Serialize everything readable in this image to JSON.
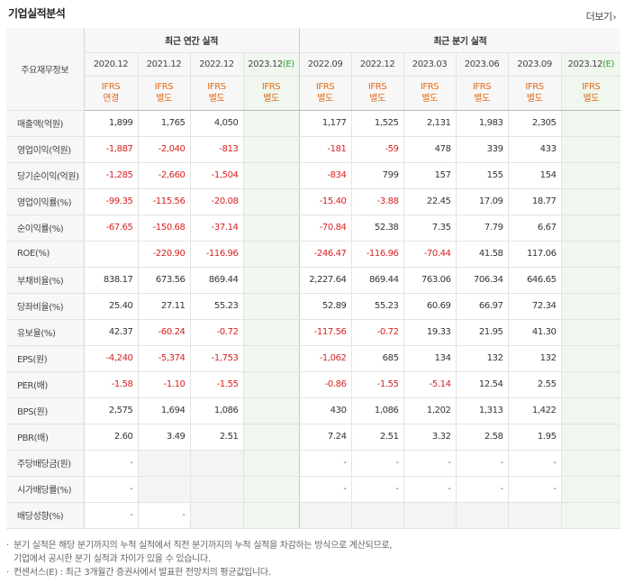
{
  "section_title": "기업실적분석",
  "more_link": "더보기",
  "header": {
    "corner": "주요재무정보",
    "annual_group": "최근 연간 실적",
    "quarterly_group": "최근 분기 실적",
    "annual_periods": [
      "2020.12",
      "2021.12",
      "2022.12",
      "2023.12(E)"
    ],
    "quarterly_periods": [
      "2022.09",
      "2022.12",
      "2023.03",
      "2023.06",
      "2023.09",
      "2023.12(E)"
    ],
    "annual_ifrs": [
      [
        "IFRS",
        "연결"
      ],
      [
        "IFRS",
        "별도"
      ],
      [
        "IFRS",
        "별도"
      ],
      [
        "IFRS",
        "별도"
      ]
    ],
    "quarterly_ifrs": [
      [
        "IFRS",
        "별도"
      ],
      [
        "IFRS",
        "별도"
      ],
      [
        "IFRS",
        "별도"
      ],
      [
        "IFRS",
        "별도"
      ],
      [
        "IFRS",
        "별도"
      ],
      [
        "IFRS",
        "별도"
      ]
    ]
  },
  "rows": [
    {
      "label": "매출액(억원)",
      "annual": [
        "1,899",
        "1,765",
        "4,050",
        ""
      ],
      "quarterly": [
        "1,177",
        "1,525",
        "2,131",
        "1,983",
        "2,305",
        ""
      ]
    },
    {
      "label": "영업이익(억원)",
      "annual": [
        "-1,887",
        "-2,040",
        "-813",
        ""
      ],
      "quarterly": [
        "-181",
        "-59",
        "478",
        "339",
        "433",
        ""
      ]
    },
    {
      "label": "당기순이익(억원)",
      "annual": [
        "-1,285",
        "-2,660",
        "-1,504",
        ""
      ],
      "quarterly": [
        "-834",
        "799",
        "157",
        "155",
        "154",
        ""
      ]
    },
    {
      "label": "영업이익률(%)",
      "annual": [
        "-99.35",
        "-115.56",
        "-20.08",
        ""
      ],
      "quarterly": [
        "-15.40",
        "-3.88",
        "22.45",
        "17.09",
        "18.77",
        ""
      ]
    },
    {
      "label": "순이익률(%)",
      "annual": [
        "-67.65",
        "-150.68",
        "-37.14",
        ""
      ],
      "quarterly": [
        "-70.84",
        "52.38",
        "7.35",
        "7.79",
        "6.67",
        ""
      ]
    },
    {
      "label": "ROE(%)",
      "annual": [
        "",
        "-220.90",
        "-116.96",
        ""
      ],
      "quarterly": [
        "-246.47",
        "-116.96",
        "-70.44",
        "41.58",
        "117.06",
        ""
      ]
    },
    {
      "label": "부채비율(%)",
      "annual": [
        "838.17",
        "673.56",
        "869.44",
        ""
      ],
      "quarterly": [
        "2,227.64",
        "869.44",
        "763.06",
        "706.34",
        "646.65",
        ""
      ]
    },
    {
      "label": "당좌비율(%)",
      "annual": [
        "25.40",
        "27.11",
        "55.23",
        ""
      ],
      "quarterly": [
        "52.89",
        "55.23",
        "60.69",
        "66.97",
        "72.34",
        ""
      ]
    },
    {
      "label": "유보율(%)",
      "annual": [
        "42.37",
        "-60.24",
        "-0.72",
        ""
      ],
      "quarterly": [
        "-117.56",
        "-0.72",
        "19.33",
        "21.95",
        "41.30",
        ""
      ]
    },
    {
      "label": "EPS(원)",
      "annual": [
        "-4,240",
        "-5,374",
        "-1,753",
        ""
      ],
      "quarterly": [
        "-1,062",
        "685",
        "134",
        "132",
        "132",
        ""
      ]
    },
    {
      "label": "PER(배)",
      "annual": [
        "-1.58",
        "-1.10",
        "-1.55",
        ""
      ],
      "quarterly": [
        "-0.86",
        "-1.55",
        "-5.14",
        "12.54",
        "2.55",
        ""
      ]
    },
    {
      "label": "BPS(원)",
      "annual": [
        "2,575",
        "1,694",
        "1,086",
        ""
      ],
      "quarterly": [
        "430",
        "1,086",
        "1,202",
        "1,313",
        "1,422",
        ""
      ]
    },
    {
      "label": "PBR(배)",
      "annual": [
        "2.60",
        "3.49",
        "2.51",
        ""
      ],
      "quarterly": [
        "7.24",
        "2.51",
        "3.32",
        "2.58",
        "1.95",
        ""
      ]
    },
    {
      "label": "주당배당금(원)",
      "annual": [
        "-",
        "",
        "",
        ""
      ],
      "quarterly": [
        "-",
        "-",
        "-",
        "-",
        "-",
        ""
      ]
    },
    {
      "label": "시가배당률(%)",
      "annual": [
        "-",
        "",
        "",
        ""
      ],
      "quarterly": [
        "-",
        "-",
        "-",
        "-",
        "-",
        ""
      ]
    },
    {
      "label": "배당성향(%)",
      "annual": [
        "-",
        "-",
        "",
        ""
      ],
      "quarterly": [
        "",
        "",
        "",
        "",
        "",
        ""
      ]
    }
  ],
  "notes": [
    "분기 실적은 해당 분기까지의 누적 실적에서 직전 분기까지의 누적 실적을 차감하는 방식으로 계산되므로,",
    "기업에서 공시한 분기 실적과 차이가 있을 수 있습니다.",
    "컨센서스(E) : 최근 3개월간 증권사에서 발표한 전망치의 평균값입니다."
  ]
}
